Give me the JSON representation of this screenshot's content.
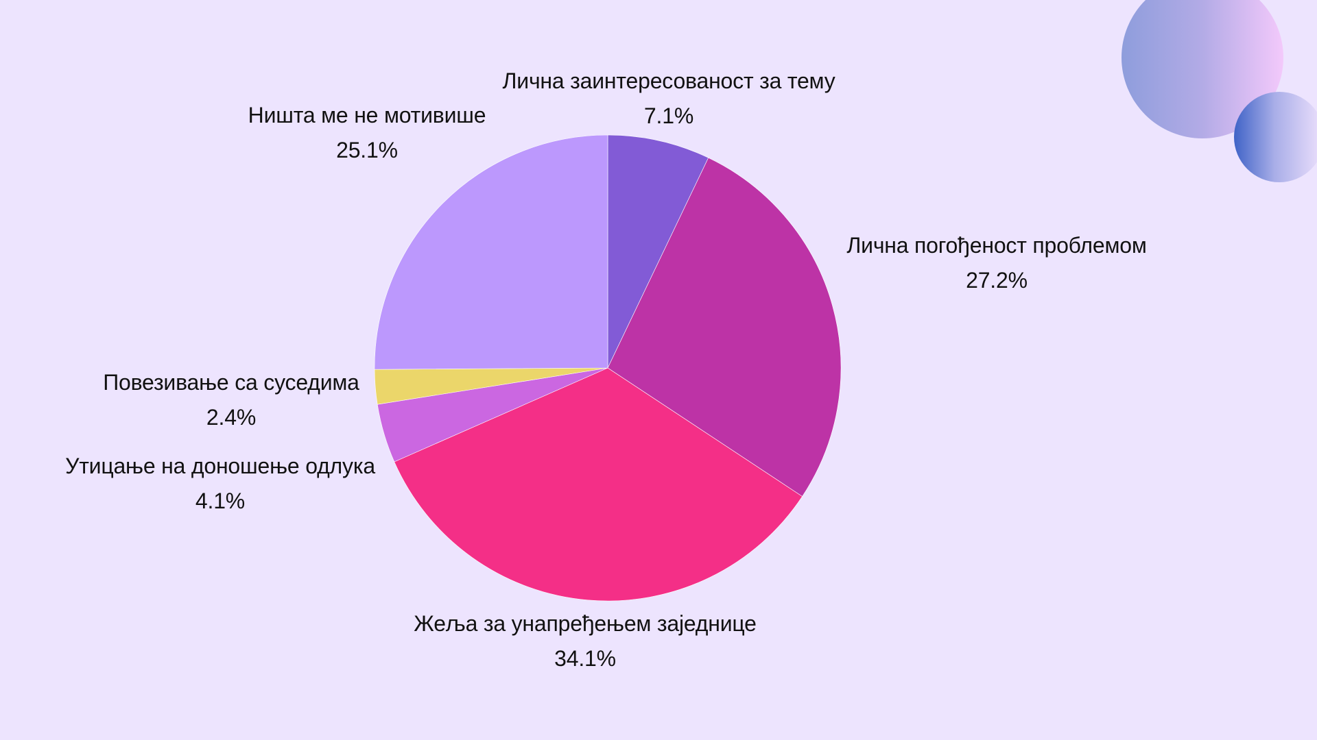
{
  "chart_data": {
    "type": "pie",
    "start_angle_deg": 0,
    "direction": "clockwise",
    "slices": [
      {
        "label": "Лична заинтересованост за тему",
        "value": 7.1,
        "value_label": "7.1%",
        "color": "#825bd6"
      },
      {
        "label": "Лична погођеност проблемом",
        "value": 27.2,
        "value_label": "27.2%",
        "color": "#bd33a6"
      },
      {
        "label": "Жеља за унапређењем заједнице",
        "value": 34.1,
        "value_label": "34.1%",
        "color": "#f42f87"
      },
      {
        "label": "Утицање на доношење одлука",
        "value": 4.1,
        "value_label": "4.1%",
        "color": "#cb67e1"
      },
      {
        "label": "Повезивање са суседима",
        "value": 2.4,
        "value_label": "2.4%",
        "color": "#ebd66a"
      },
      {
        "label": "Ништа ме не мотивише",
        "value": 25.1,
        "value_label": "25.1%",
        "color": "#bc98fd"
      }
    ]
  },
  "theme": {
    "background": "#ede4fe"
  }
}
